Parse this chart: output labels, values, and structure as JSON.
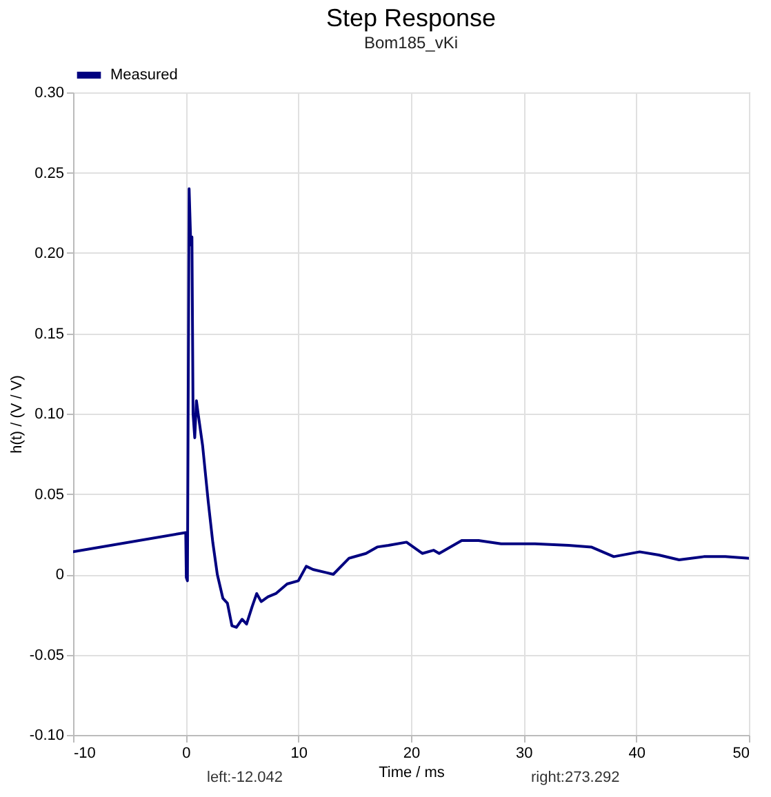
{
  "chart_data": {
    "type": "line",
    "title": "Step Response",
    "subtitle": "Bom185_vKi",
    "xlabel": "Time / ms",
    "ylabel": "h(t) / (V / V)",
    "annotations": [
      "left:-12.042",
      "right:273.292"
    ],
    "xlim": [
      -10,
      50
    ],
    "xticks": [
      -10,
      0,
      10,
      20,
      30,
      40,
      50
    ],
    "ylim": [
      -0.1,
      0.3
    ],
    "yticks": [
      {
        "value": -0.1,
        "label": "-0.10"
      },
      -0.05,
      0,
      0.05,
      {
        "value": 0.1,
        "label": "0.10"
      },
      0.15,
      {
        "value": 0.2,
        "label": "0.20"
      },
      0.25,
      {
        "value": 0.3,
        "label": "0.30"
      }
    ],
    "grid": true,
    "legend": "top left",
    "line_style": "solid",
    "marker": "none",
    "series": [
      {
        "name": "Measured",
        "color": "#000080",
        "x": [
          -10,
          0,
          0.05,
          0.15,
          0.3,
          0.45,
          0.55,
          0.65,
          0.8,
          0.95,
          1.1,
          1.5,
          2.0,
          2.4,
          2.8,
          3.3,
          3.7,
          4.1,
          4.5,
          5,
          5.4,
          5.9,
          6.3,
          6.7,
          7.3,
          8,
          9,
          10,
          10.7,
          11.3,
          12.5,
          13.1,
          14.5,
          16,
          17,
          18,
          19.6,
          21,
          22,
          22.5,
          24.5,
          26,
          28,
          31,
          34,
          36,
          38,
          40.3,
          42,
          43.8,
          46,
          47.9,
          50
        ],
        "values": [
          0.014,
          0.026,
          -0.002,
          -0.004,
          0.24,
          0.205,
          0.21,
          0.1,
          0.085,
          0.108,
          0.1,
          0.08,
          0.045,
          0.02,
          0.0,
          -0.015,
          -0.018,
          -0.032,
          -0.033,
          -0.028,
          -0.031,
          -0.02,
          -0.012,
          -0.017,
          -0.014,
          -0.012,
          -0.006,
          -0.004,
          0.005,
          0.003,
          0.001,
          0.0,
          0.01,
          0.013,
          0.017,
          0.018,
          0.02,
          0.013,
          0.015,
          0.013,
          0.021,
          0.021,
          0.019,
          0.019,
          0.018,
          0.017,
          0.011,
          0.014,
          0.012,
          0.009,
          0.011,
          0.011,
          0.01
        ]
      }
    ]
  }
}
